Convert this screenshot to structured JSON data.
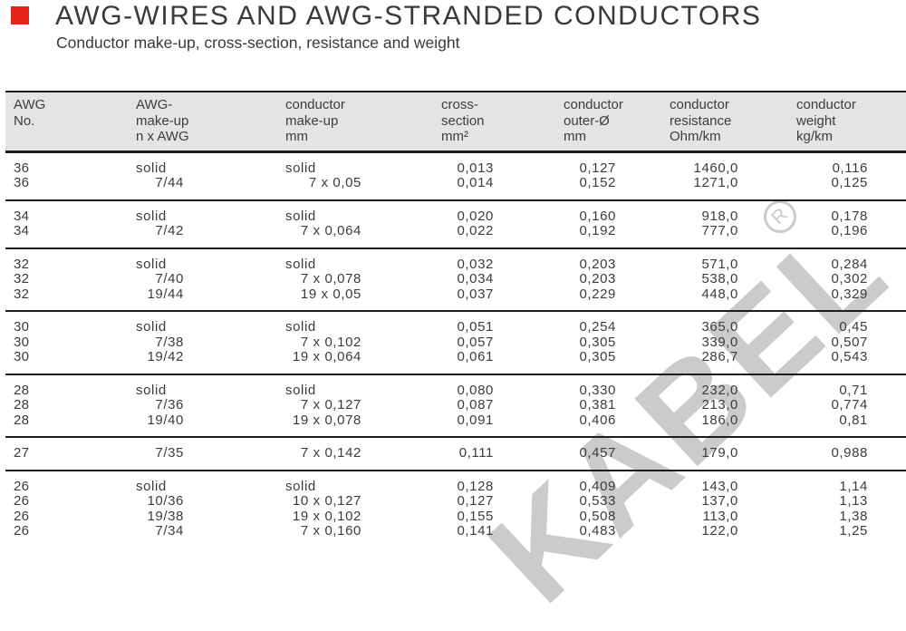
{
  "page": {
    "title": "AWG-WIRES AND AWG-STRANDED CONDUCTORS",
    "subtitle": "Conductor make-up, cross-section, resistance and weight",
    "accent_color": "#e5231b",
    "text_color": "#3c3c3b",
    "header_bg_color": "#e4e4e4",
    "rule_color": "#1d1d1b"
  },
  "watermark": {
    "text": "KABEL",
    "registered_mark": "R",
    "color": "#c9cbcd"
  },
  "table": {
    "headers": [
      [
        "AWG",
        "No.",
        ""
      ],
      [
        "AWG-",
        "make-up",
        "n x AWG"
      ],
      [
        "conductor",
        "make-up",
        "mm"
      ],
      [
        "cross-",
        "section",
        "mm²"
      ],
      [
        "conductor",
        "outer-Ø",
        "mm"
      ],
      [
        "conductor",
        "resistance",
        "Ohm/km"
      ],
      [
        "conductor",
        "weight",
        "kg/km"
      ]
    ],
    "groups": [
      {
        "rows": [
          [
            "36",
            "solid",
            "solid",
            "0,013",
            "0,127",
            "1460,0",
            "0,116"
          ],
          [
            "36",
            "7/44",
            "7 x 0,05",
            "0,014",
            "0,152",
            "1271,0",
            "0,125"
          ]
        ]
      },
      {
        "rows": [
          [
            "34",
            "solid",
            "solid",
            "0,020",
            "0,160",
            "918,0",
            "0,178"
          ],
          [
            "34",
            "7/42",
            "7 x 0,064",
            "0,022",
            "0,192",
            "777,0",
            "0,196"
          ]
        ]
      },
      {
        "rows": [
          [
            "32",
            "solid",
            "solid",
            "0,032",
            "0,203",
            "571,0",
            "0,284"
          ],
          [
            "32",
            "7/40",
            "7 x 0,078",
            "0,034",
            "0,203",
            "538,0",
            "0,302"
          ],
          [
            "32",
            "19/44",
            "19 x 0,05",
            "0,037",
            "0,229",
            "448,0",
            "0,329"
          ]
        ]
      },
      {
        "rows": [
          [
            "30",
            "solid",
            "solid",
            "0,051",
            "0,254",
            "365,0",
            "0,45"
          ],
          [
            "30",
            "7/38",
            "7 x 0,102",
            "0,057",
            "0,305",
            "339,0",
            "0,507"
          ],
          [
            "30",
            "19/42",
            "19 x 0,064",
            "0,061",
            "0,305",
            "286,7",
            "0,543"
          ]
        ]
      },
      {
        "rows": [
          [
            "28",
            "solid",
            "solid",
            "0,080",
            "0,330",
            "232,0",
            "0,71"
          ],
          [
            "28",
            "7/36",
            "7 x 0,127",
            "0,087",
            "0,381",
            "213,0",
            "0,774"
          ],
          [
            "28",
            "19/40",
            "19 x 0,078",
            "0,091",
            "0,406",
            "186,0",
            "0,81"
          ]
        ]
      },
      {
        "rows": [
          [
            "27",
            "7/35",
            "7 x 0,142",
            "0,111",
            "0,457",
            "179,0",
            "0,988"
          ]
        ]
      },
      {
        "rows": [
          [
            "26",
            "solid",
            "solid",
            "0,128",
            "0,409",
            "143,0",
            "1,14"
          ],
          [
            "26",
            "10/36",
            "10 x 0,127",
            "0,127",
            "0,533",
            "137,0",
            "1,13"
          ],
          [
            "26",
            "19/38",
            "19 x 0,102",
            "0,155",
            "0,508",
            "113,0",
            "1,38"
          ],
          [
            "26",
            "7/34",
            "7 x 0,160",
            "0,141",
            "0,483",
            "122,0",
            "1,25"
          ]
        ]
      }
    ]
  }
}
